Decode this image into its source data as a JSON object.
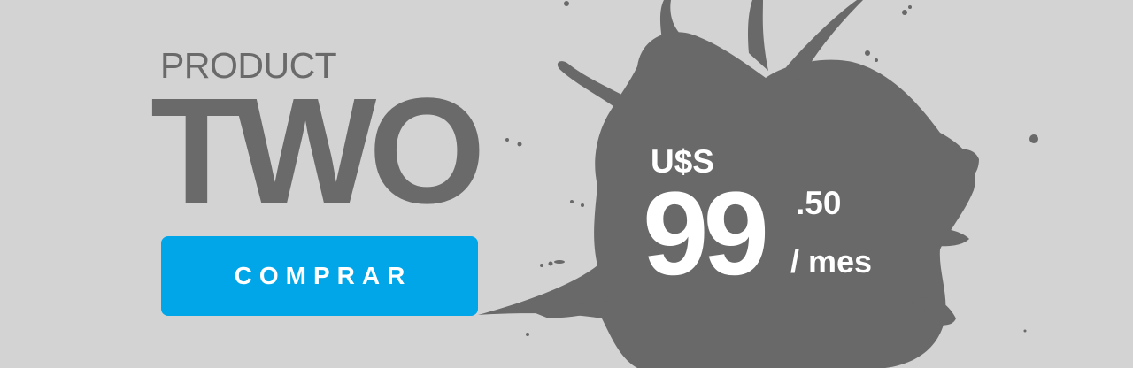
{
  "product": {
    "label": "PRODUCT",
    "name": "TWO"
  },
  "cta": {
    "label": "COMPRAR"
  },
  "price": {
    "currency": "U$S",
    "integer": "99",
    "decimal": ".50",
    "period": "/ mes"
  },
  "colors": {
    "background": "#d3d3d3",
    "text_gray": "#6a6a6a",
    "splash": "#696969",
    "button": "#00a6e8",
    "price_text": "#ffffff"
  }
}
